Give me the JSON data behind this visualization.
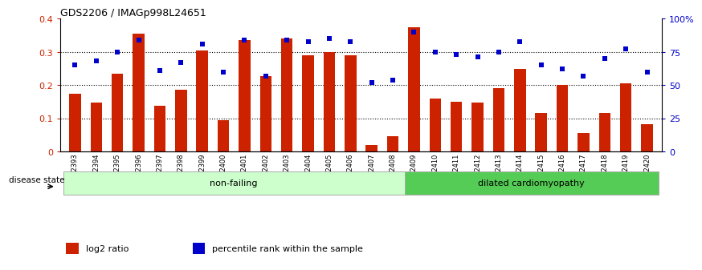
{
  "title": "GDS2206 / IMAGp998L24651",
  "samples": [
    "GSM82393",
    "GSM82394",
    "GSM82395",
    "GSM82396",
    "GSM82397",
    "GSM82398",
    "GSM82399",
    "GSM82400",
    "GSM82401",
    "GSM82402",
    "GSM82403",
    "GSM82404",
    "GSM82405",
    "GSM82406",
    "GSM82407",
    "GSM82408",
    "GSM82409",
    "GSM82410",
    "GSM82411",
    "GSM82412",
    "GSM82413",
    "GSM82414",
    "GSM82415",
    "GSM82416",
    "GSM82417",
    "GSM82418",
    "GSM82419",
    "GSM82420"
  ],
  "log2_ratio": [
    0.175,
    0.148,
    0.235,
    0.355,
    0.138,
    0.185,
    0.305,
    0.095,
    0.335,
    0.228,
    0.34,
    0.29,
    0.3,
    0.29,
    0.02,
    0.045,
    0.375,
    0.16,
    0.15,
    0.148,
    0.19,
    0.248,
    0.115,
    0.2,
    0.055,
    0.115,
    0.205,
    0.082
  ],
  "percentile": [
    65,
    68,
    75,
    84,
    61,
    67,
    81,
    60,
    84,
    57,
    84,
    83,
    85,
    83,
    52,
    54,
    90,
    75,
    73,
    71,
    75,
    83,
    65,
    62,
    57,
    70,
    77,
    60
  ],
  "nonfailing_count": 16,
  "bar_color": "#cc2200",
  "dot_color": "#0000cc",
  "nonfailing_color": "#ccffcc",
  "dilated_color": "#55cc55",
  "nonfailing_label": "non-failing",
  "dilated_label": "dilated cardiomyopathy",
  "disease_state_label": "disease state",
  "ylim_left": [
    0,
    0.4
  ],
  "ylim_right": [
    0,
    100
  ],
  "yticks_left": [
    0.0,
    0.1,
    0.2,
    0.3,
    0.4
  ],
  "ytick_labels_left": [
    "0",
    "0.1",
    "0.2",
    "0.3",
    "0.4"
  ],
  "yticks_right": [
    0,
    25,
    50,
    75,
    100
  ],
  "ytick_labels_right": [
    "0",
    "25",
    "50",
    "75",
    "100%"
  ],
  "bg_color": "#ffffff"
}
